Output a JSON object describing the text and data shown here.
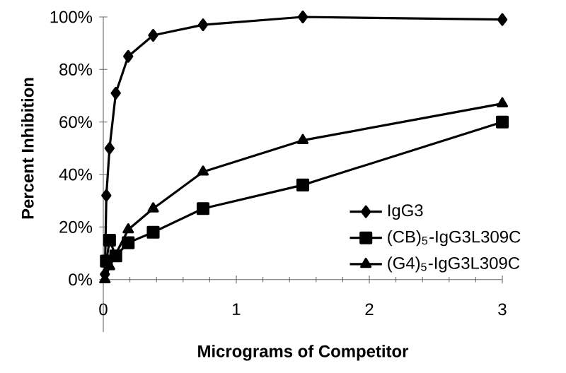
{
  "chart_data": {
    "type": "line",
    "xlabel": "Micrograms of Competitor",
    "ylabel": "Percent Inhibition",
    "xlim": [
      0,
      3
    ],
    "xticks": [
      0,
      1,
      2,
      3
    ],
    "ylim": [
      -20,
      100
    ],
    "yticks": [
      {
        "value": 0,
        "label": "0%"
      },
      {
        "value": 20,
        "label": "20%"
      },
      {
        "value": 40,
        "label": "40%"
      },
      {
        "value": 60,
        "label": "60%"
      },
      {
        "value": 80,
        "label": "80%"
      },
      {
        "value": 100,
        "label": "100%"
      }
    ],
    "legend": "right",
    "line_style": "solid",
    "series": [
      {
        "name": "IgG3",
        "color": "#000000",
        "marker": "diamond",
        "x": [
          0.012,
          0.023,
          0.047,
          0.094,
          0.1875,
          0.375,
          0.75,
          1.5,
          3
        ],
        "values": [
          2,
          32,
          50,
          71,
          85,
          93,
          97,
          100,
          99
        ]
      },
      {
        "name": "(CB)$_{5}$-IgG3L309C",
        "color": "#000000",
        "marker": "square",
        "x": [
          0.023,
          0.047,
          0.094,
          0.1875,
          0.375,
          0.75,
          1.5,
          3
        ],
        "values": [
          7,
          15,
          9,
          14,
          18,
          27,
          36,
          60
        ]
      },
      {
        "name": "(G4)$_{5}$-IgG3L309C",
        "color": "#000000",
        "marker": "triangle",
        "x": [
          0.012,
          0.047,
          0.1875,
          0.375,
          0.75,
          1.5,
          3
        ],
        "values": [
          0,
          5,
          19,
          27,
          41,
          53,
          67
        ]
      }
    ]
  }
}
